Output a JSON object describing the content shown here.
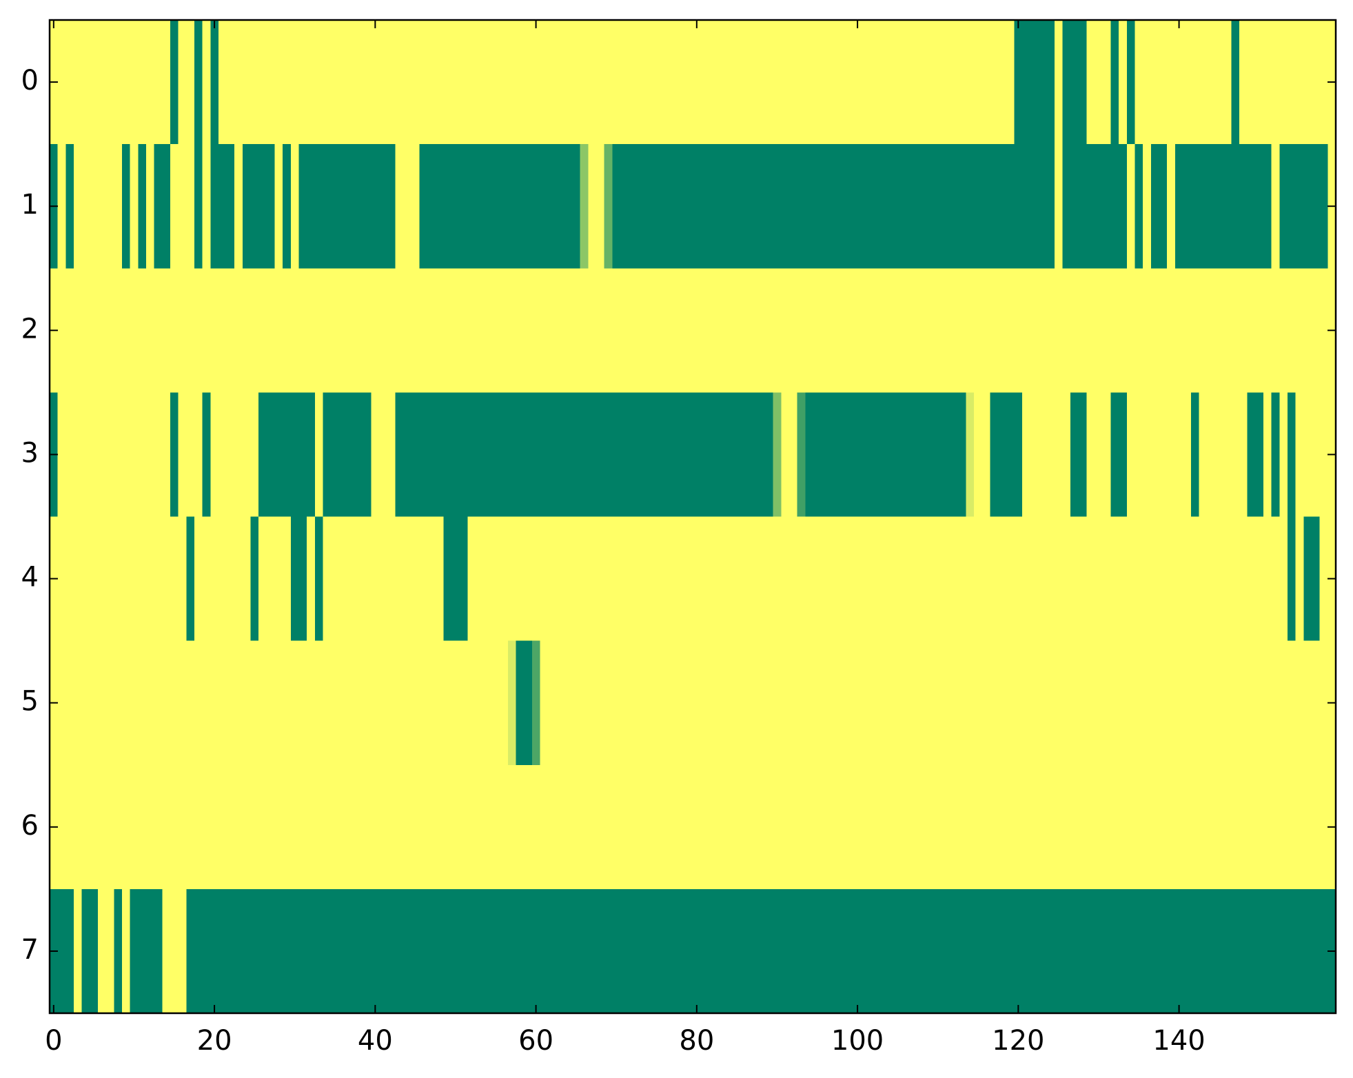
{
  "chart_data": {
    "type": "heatmap",
    "colormap": [
      "#008066",
      "#ffff66"
    ],
    "clim": [
      0,
      1
    ],
    "xlim": [
      -0.5,
      159.5
    ],
    "ylim": [
      7.5,
      -0.5
    ],
    "xticks": [
      0,
      20,
      40,
      60,
      80,
      100,
      120,
      140
    ],
    "yticks": [
      0,
      1,
      2,
      3,
      4,
      5,
      6,
      7
    ],
    "values": [
      [
        1,
        1,
        1,
        1,
        1,
        1,
        1,
        1,
        1,
        1,
        1,
        1,
        1,
        1,
        1,
        0,
        1,
        1,
        0,
        1,
        0,
        1,
        1,
        1,
        1,
        1,
        1,
        1,
        1,
        1,
        1,
        1,
        1,
        1,
        1,
        1,
        1,
        1,
        1,
        1,
        1,
        1,
        1,
        1,
        1,
        1,
        1,
        1,
        1,
        1,
        1,
        1,
        1,
        1,
        1,
        1,
        1,
        1,
        1,
        1,
        1,
        1,
        1,
        1,
        1,
        1,
        1,
        1,
        1,
        1,
        1,
        1,
        1,
        1,
        1,
        1,
        1,
        1,
        1,
        1,
        1,
        1,
        1,
        1,
        1,
        1,
        1,
        1,
        1,
        1,
        1,
        1,
        1,
        1,
        1,
        1,
        1,
        1,
        1,
        1,
        1,
        1,
        1,
        1,
        1,
        1,
        1,
        1,
        1,
        1,
        1,
        1,
        1,
        1,
        1,
        1,
        1,
        1,
        1,
        1,
        0,
        0,
        0,
        0,
        0,
        1,
        0,
        0,
        0,
        1,
        1,
        1,
        0,
        1,
        0,
        1,
        1,
        1,
        1,
        1,
        1,
        1,
        1,
        1,
        1,
        1,
        1,
        0,
        1,
        1,
        1,
        1,
        1,
        1,
        1,
        1,
        1,
        1,
        1,
        1
      ],
      [
        0,
        1,
        0,
        1,
        1,
        1,
        1,
        1,
        1,
        0,
        1,
        0,
        1,
        0,
        0,
        1,
        1,
        1,
        0,
        1,
        0,
        0,
        0,
        1,
        0,
        0,
        0,
        0,
        1,
        0,
        1,
        0,
        0,
        0,
        0,
        0,
        0,
        0,
        0,
        0,
        0,
        0,
        0,
        1,
        1,
        1,
        0,
        0,
        0,
        0,
        0,
        0,
        0,
        0,
        0,
        0,
        0,
        0,
        0,
        0,
        0,
        0,
        0,
        0,
        0,
        0,
        0.55,
        1,
        1,
        0.4,
        0,
        0,
        0,
        0,
        0,
        0,
        0,
        0,
        0,
        0,
        0,
        0,
        0,
        0,
        0,
        0,
        0,
        0,
        0,
        0,
        0,
        0,
        0,
        0,
        0,
        0,
        0,
        0,
        0,
        0,
        0,
        0,
        0,
        0,
        0,
        0,
        0,
        0,
        0,
        0,
        0,
        0,
        0,
        0,
        0,
        0,
        0,
        0,
        0,
        0,
        0,
        0,
        0,
        0,
        0,
        1,
        0,
        0,
        0,
        0,
        0,
        0,
        0,
        0,
        1,
        0,
        1,
        0,
        0,
        1,
        0,
        0,
        0,
        0,
        0,
        0,
        0,
        0,
        0,
        0,
        0,
        0,
        1,
        0,
        0,
        0,
        0,
        0,
        0,
        1
      ],
      [
        1,
        1,
        1,
        1,
        1,
        1,
        1,
        1,
        1,
        1,
        1,
        1,
        1,
        1,
        1,
        1,
        1,
        1,
        1,
        1,
        1,
        1,
        1,
        1,
        1,
        1,
        1,
        1,
        1,
        1,
        1,
        1,
        1,
        1,
        1,
        1,
        1,
        1,
        1,
        1,
        1,
        1,
        1,
        1,
        1,
        1,
        1,
        1,
        1,
        1,
        1,
        1,
        1,
        1,
        1,
        1,
        1,
        1,
        1,
        1,
        1,
        1,
        1,
        1,
        1,
        1,
        1,
        1,
        1,
        1,
        1,
        1,
        1,
        1,
        1,
        1,
        1,
        1,
        1,
        1,
        1,
        1,
        1,
        1,
        1,
        1,
        1,
        1,
        1,
        1,
        1,
        1,
        1,
        1,
        1,
        1,
        1,
        1,
        1,
        1,
        1,
        1,
        1,
        1,
        1,
        1,
        1,
        1,
        1,
        1,
        1,
        1,
        1,
        1,
        1,
        1,
        1,
        1,
        1,
        1,
        1,
        1,
        1,
        1,
        1,
        1,
        1,
        1,
        1,
        1,
        1,
        1,
        1,
        1,
        1,
        1,
        1,
        1,
        1,
        1,
        1,
        1,
        1,
        1,
        1,
        1,
        1,
        1,
        1,
        1,
        1,
        1,
        1,
        1,
        1,
        1,
        1,
        1,
        1,
        1
      ],
      [
        0,
        1,
        1,
        1,
        1,
        1,
        1,
        1,
        1,
        1,
        1,
        1,
        1,
        1,
        1,
        0,
        1,
        1,
        1,
        0,
        1,
        1,
        1,
        1,
        1,
        1,
        0,
        0,
        0,
        0,
        0,
        0,
        0,
        1,
        0,
        0,
        0,
        0,
        0,
        0,
        1,
        1,
        1,
        0,
        0,
        0,
        0,
        0,
        0,
        0,
        0,
        0,
        0,
        0,
        0,
        0,
        0,
        0,
        0,
        0,
        0,
        0,
        0,
        0,
        0,
        0,
        0,
        0,
        0,
        0,
        0,
        0,
        0,
        0,
        0,
        0,
        0,
        0,
        0,
        0,
        0,
        0,
        0,
        0,
        0,
        0,
        0,
        0,
        0,
        0,
        0.5,
        1,
        1,
        0.25,
        0,
        0,
        0,
        0,
        0,
        0,
        0,
        0,
        0,
        0,
        0,
        0,
        0,
        0,
        0,
        0,
        0,
        0,
        0,
        0,
        0.85,
        1,
        1,
        0,
        0,
        0,
        0,
        1,
        1,
        1,
        1,
        1,
        1,
        0,
        0,
        1,
        1,
        1,
        0,
        0,
        1,
        1,
        1,
        1,
        1,
        1,
        1,
        1,
        0,
        1,
        1,
        1,
        1,
        1,
        1,
        0,
        0,
        1,
        0,
        1,
        0,
        1,
        1,
        1,
        1,
        1
      ],
      [
        1,
        1,
        1,
        1,
        1,
        1,
        1,
        1,
        1,
        1,
        1,
        1,
        1,
        1,
        1,
        1,
        1,
        0,
        1,
        1,
        1,
        1,
        1,
        1,
        1,
        0,
        1,
        1,
        1,
        1,
        0,
        0,
        1,
        0,
        1,
        1,
        1,
        1,
        1,
        1,
        1,
        1,
        1,
        1,
        1,
        1,
        1,
        1,
        1,
        0,
        0,
        0,
        1,
        1,
        1,
        1,
        1,
        1,
        1,
        1,
        1,
        1,
        1,
        1,
        1,
        1,
        1,
        1,
        1,
        1,
        1,
        1,
        1,
        1,
        1,
        1,
        1,
        1,
        1,
        1,
        1,
        1,
        1,
        1,
        1,
        1,
        1,
        1,
        1,
        1,
        1,
        1,
        1,
        1,
        1,
        1,
        1,
        1,
        1,
        1,
        1,
        1,
        1,
        1,
        1,
        1,
        1,
        1,
        1,
        1,
        1,
        1,
        1,
        1,
        1,
        1,
        1,
        1,
        1,
        1,
        1,
        1,
        1,
        1,
        1,
        1,
        1,
        1,
        1,
        1,
        1,
        1,
        1,
        1,
        1,
        1,
        1,
        1,
        1,
        1,
        1,
        1,
        1,
        1,
        1,
        1,
        1,
        1,
        1,
        1,
        1,
        1,
        1,
        1,
        0,
        1,
        0,
        0,
        1,
        1
      ],
      [
        1,
        1,
        1,
        1,
        1,
        1,
        1,
        1,
        1,
        1,
        1,
        1,
        1,
        1,
        1,
        1,
        1,
        1,
        1,
        1,
        1,
        1,
        1,
        1,
        1,
        1,
        1,
        1,
        1,
        1,
        1,
        1,
        1,
        1,
        1,
        1,
        1,
        1,
        1,
        1,
        1,
        1,
        1,
        1,
        1,
        1,
        1,
        1,
        1,
        1,
        1,
        1,
        1,
        1,
        1,
        1,
        1,
        0.85,
        0,
        0,
        0.3,
        1,
        1,
        1,
        1,
        1,
        1,
        1,
        1,
        1,
        1,
        1,
        1,
        1,
        1,
        1,
        1,
        1,
        1,
        1,
        1,
        1,
        1,
        1,
        1,
        1,
        1,
        1,
        1,
        1,
        1,
        1,
        1,
        1,
        1,
        1,
        1,
        1,
        1,
        1,
        1,
        1,
        1,
        1,
        1,
        1,
        1,
        1,
        1,
        1,
        1,
        1,
        1,
        1,
        1,
        1,
        1,
        1,
        1,
        1,
        1,
        1,
        1,
        1,
        1,
        1,
        1,
        1,
        1,
        1,
        1,
        1,
        1,
        1,
        1,
        1,
        1,
        1,
        1,
        1,
        1,
        1,
        1,
        1,
        1,
        1,
        1,
        1,
        1,
        1,
        1,
        1,
        1,
        1,
        1,
        1,
        1,
        1,
        1,
        1
      ],
      [
        1,
        1,
        1,
        1,
        1,
        1,
        1,
        1,
        1,
        1,
        1,
        1,
        1,
        1,
        1,
        1,
        1,
        1,
        1,
        1,
        1,
        1,
        1,
        1,
        1,
        1,
        1,
        1,
        1,
        1,
        1,
        1,
        1,
        1,
        1,
        1,
        1,
        1,
        1,
        1,
        1,
        1,
        1,
        1,
        1,
        1,
        1,
        1,
        1,
        1,
        1,
        1,
        1,
        1,
        1,
        1,
        1,
        1,
        1,
        1,
        1,
        1,
        1,
        1,
        1,
        1,
        1,
        1,
        1,
        1,
        1,
        1,
        1,
        1,
        1,
        1,
        1,
        1,
        1,
        1,
        1,
        1,
        1,
        1,
        1,
        1,
        1,
        1,
        1,
        1,
        1,
        1,
        1,
        1,
        1,
        1,
        1,
        1,
        1,
        1,
        1,
        1,
        1,
        1,
        1,
        1,
        1,
        1,
        1,
        1,
        1,
        1,
        1,
        1,
        1,
        1,
        1,
        1,
        1,
        1,
        1,
        1,
        1,
        1,
        1,
        1,
        1,
        1,
        1,
        1,
        1,
        1,
        1,
        1,
        1,
        1,
        1,
        1,
        1,
        1,
        1,
        1,
        1,
        1,
        1,
        1,
        1,
        1,
        1,
        1,
        1,
        1,
        1,
        1,
        1,
        1,
        1,
        1,
        1,
        1
      ],
      [
        0,
        0,
        0,
        1,
        0,
        0,
        1,
        1,
        0,
        1,
        0,
        0,
        0,
        0,
        1,
        1,
        1,
        0,
        0,
        0,
        0,
        0,
        0,
        0,
        0,
        0,
        0,
        0,
        0,
        0,
        0,
        0,
        0,
        0,
        0,
        0,
        0,
        0,
        0,
        0,
        0,
        0,
        0,
        0,
        0,
        0,
        0,
        0,
        0,
        0,
        0,
        0,
        0,
        0,
        0,
        0,
        0,
        0,
        0,
        0,
        0,
        0,
        0,
        0,
        0,
        0,
        0,
        0,
        0,
        0,
        0,
        0,
        0,
        0,
        0,
        0,
        0,
        0,
        0,
        0,
        0,
        0,
        0,
        0,
        0,
        0,
        0,
        0,
        0,
        0,
        0,
        0,
        0,
        0,
        0,
        0,
        0,
        0,
        0,
        0,
        0,
        0,
        0,
        0,
        0,
        0,
        0,
        0,
        0,
        0,
        0,
        0,
        0,
        0,
        0,
        0,
        0,
        0,
        0,
        0,
        0,
        0,
        0,
        0,
        0,
        0,
        0,
        0,
        0,
        0,
        0,
        0,
        0,
        0,
        0,
        0,
        0,
        0,
        0,
        0,
        0,
        0,
        0,
        0,
        0,
        0,
        0,
        0,
        0,
        0,
        0,
        0,
        0,
        0,
        0,
        0,
        0,
        0,
        0,
        0
      ]
    ]
  }
}
